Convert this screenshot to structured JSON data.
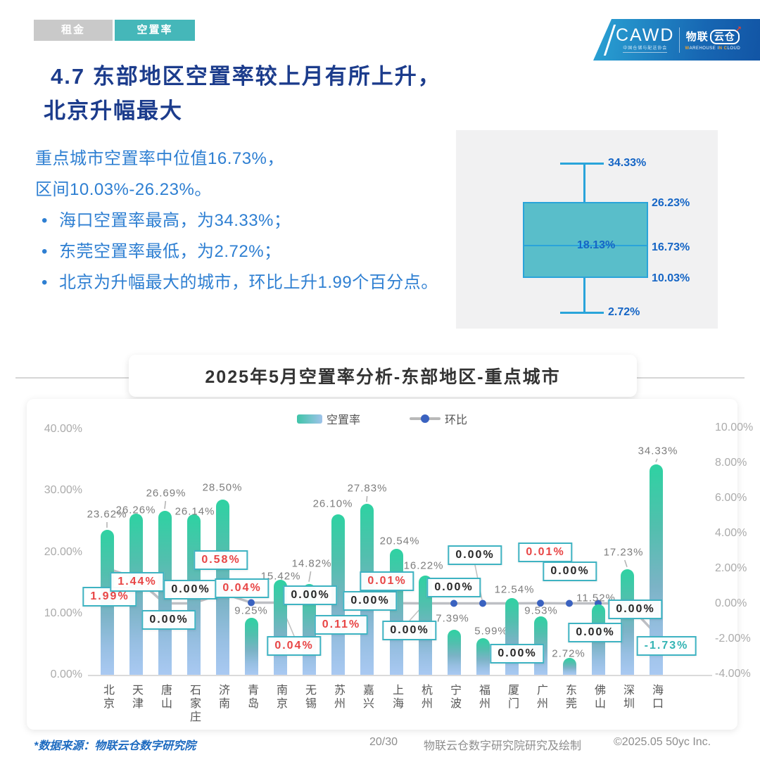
{
  "tabs": [
    {
      "label": "租金",
      "active": false
    },
    {
      "label": "空置率",
      "active": true
    }
  ],
  "logo": {
    "cawd": "CAWD",
    "cawd_sub": "中国仓储与配送协会",
    "brand": "物联云仓",
    "brand_left": "物联",
    "brand_cloud": "云仓",
    "brand_arrow": "↗",
    "brand_sub_1": "W",
    "brand_sub_2": "AREHOUSE I",
    "brand_sub_3": "N",
    "brand_sub_4": " ",
    "brand_sub_5": "C",
    "brand_sub_6": "LOUD"
  },
  "title": {
    "line1": "4.7 东部地区空置率较上月有所上升，",
    "line2": "北京升幅最大"
  },
  "summary": {
    "line1": "重点城市空置率中位值16.73%，",
    "line2": "区间10.03%-26.23%。",
    "bullets": [
      "海口空置率最高，为34.33%；",
      "东莞空置率最低，为2.72%；",
      "北京为升幅最大的城市，环比上升1.99个百分点。"
    ]
  },
  "boxplot": {
    "max": "34.33%",
    "q3": "26.23%",
    "mean_marker": "×",
    "mean": "18.13%",
    "median": "16.73%",
    "q1": "10.03%",
    "min": "2.72%"
  },
  "chart_data": {
    "type": "bar",
    "title": "2025年5月空置率分析-东部地区-重点城市",
    "categories": [
      "北京",
      "天津",
      "唐山",
      "石家庄",
      "济南",
      "青岛",
      "南京",
      "无锡",
      "苏州",
      "嘉兴",
      "上海",
      "杭州",
      "宁波",
      "福州",
      "厦门",
      "广州",
      "东莞",
      "佛山",
      "深圳",
      "海口"
    ],
    "series": [
      {
        "name": "空置率",
        "type": "bar",
        "axis": "left",
        "values": [
          23.62,
          26.26,
          26.69,
          26.14,
          28.5,
          9.25,
          15.42,
          14.82,
          26.1,
          27.83,
          20.54,
          16.22,
          7.39,
          5.99,
          12.54,
          9.53,
          2.72,
          11.52,
          17.23,
          34.33
        ]
      },
      {
        "name": "环比",
        "type": "line",
        "axis": "right",
        "values": [
          1.99,
          1.44,
          0.0,
          0.0,
          0.58,
          0.04,
          0.04,
          0.0,
          0.11,
          0.0,
          0.01,
          0.0,
          0.0,
          0.0,
          0.0,
          0.01,
          0.0,
          0.0,
          0.0,
          -1.73
        ]
      }
    ],
    "bar_labels": [
      "23.62%",
      "26.26%",
      "26.69%",
      "26.14%",
      "28.50%",
      "9.25%",
      "15.42%",
      "14.82%",
      "26.10%",
      "27.83%",
      "20.54%",
      "16.22%",
      "7.39%",
      "5.99%",
      "12.54%",
      "9.53%",
      "2.72%",
      "11.52%",
      "17.23%",
      "34.33%"
    ],
    "line_labels": [
      "1.99%",
      "1.44%",
      "0.00%",
      "0.00%",
      "0.58%",
      "0.04%",
      "0.04%",
      "0.00%",
      "0.11%",
      "0.00%",
      "0.01%",
      "0.00%",
      "0.00%",
      "0.00%",
      "0.00%",
      "0.01%",
      "0.00%",
      "0.00%",
      "0.00%",
      "-1.73%"
    ],
    "left_axis_ticks": [
      "40.00%",
      "30.00%",
      "20.00%",
      "10.00%",
      "0.00%"
    ],
    "left_axis_tick_values": [
      40,
      30,
      20,
      10,
      0
    ],
    "right_axis_ticks": [
      "10.00%",
      "8.00%",
      "6.00%",
      "4.00%",
      "2.00%",
      "0.00%",
      "-2.00%",
      "-4.00%"
    ],
    "right_axis_tick_values": [
      10,
      8,
      6,
      4,
      2,
      0,
      -2,
      -4
    ],
    "left_ylim": [
      0,
      40
    ],
    "right_ylim": [
      -4,
      10
    ],
    "legend": [
      "空置率",
      "环比"
    ],
    "legend_position": "top",
    "grid": false,
    "xlabel": "",
    "ylabel": ""
  },
  "footer": {
    "source": "*数据来源：物联云仓数字研究院",
    "page": "20/30",
    "credit": "物联云仓数字研究院研究及绘制",
    "copyright": "©2025.05 50yc Inc."
  },
  "colors": {
    "accent_teal": "#45b7b9",
    "title_navy": "#1c3c8c",
    "body_blue": "#2e7fd2",
    "positive_red": "#e84545",
    "negative_teal": "#34b4b4",
    "bar_top": "#2ed2a2",
    "bar_bottom": "#a9c9f2",
    "line_gray": "#bdbfc4",
    "dot_blue": "#3a62c0",
    "box_fill": "#48b8c5",
    "box_border": "#2aa4da"
  }
}
